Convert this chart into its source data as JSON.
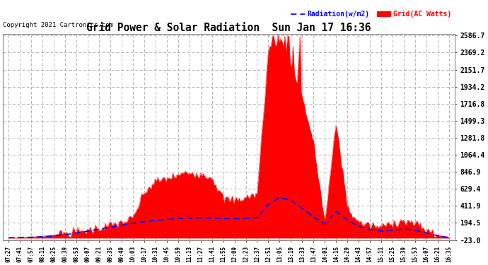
{
  "title": "Grid Power & Solar Radiation  Sun Jan 17 16:36",
  "copyright": "Copyright 2021 Cartronics.com",
  "legend_radiation": "Radiation(w/m2)",
  "legend_grid": "Grid(AC Watts)",
  "ymin": -23.0,
  "ymax": 2586.7,
  "yticks": [
    -23.0,
    194.5,
    411.9,
    629.4,
    846.9,
    1064.4,
    1281.8,
    1499.3,
    1716.8,
    1934.2,
    2151.7,
    2369.2,
    2586.7
  ],
  "bg_color": "#ffffff",
  "plot_bg_color": "#ffffff",
  "grid_color": "#aaaaaa",
  "red_fill_color": "#ff0000",
  "blue_line_color": "#0000ff",
  "xtick_labels": [
    "07:27",
    "07:41",
    "07:57",
    "08:11",
    "08:25",
    "08:39",
    "08:53",
    "09:07",
    "09:21",
    "09:35",
    "09:49",
    "10:03",
    "10:17",
    "10:31",
    "10:45",
    "10:59",
    "11:13",
    "11:27",
    "11:41",
    "11:55",
    "12:09",
    "12:23",
    "12:37",
    "12:51",
    "13:05",
    "13:19",
    "13:33",
    "13:47",
    "14:01",
    "14:15",
    "14:29",
    "14:43",
    "14:57",
    "15:11",
    "15:25",
    "15:39",
    "15:53",
    "16:07",
    "16:21",
    "16:35"
  ],
  "grid_values": [
    5,
    8,
    15,
    25,
    40,
    60,
    80,
    100,
    130,
    160,
    200,
    250,
    580,
    720,
    760,
    800,
    840,
    820,
    780,
    500,
    480,
    520,
    560,
    2400,
    2560,
    2200,
    1800,
    1200,
    200,
    1480,
    380,
    200,
    160,
    140,
    200,
    220,
    180,
    100,
    40,
    10
  ],
  "radiation_values": [
    5,
    8,
    12,
    18,
    28,
    45,
    65,
    90,
    115,
    140,
    165,
    190,
    210,
    225,
    240,
    250,
    255,
    258,
    255,
    250,
    248,
    252,
    260,
    430,
    520,
    480,
    380,
    270,
    180,
    340,
    230,
    150,
    110,
    90,
    100,
    120,
    100,
    65,
    30,
    8
  ]
}
